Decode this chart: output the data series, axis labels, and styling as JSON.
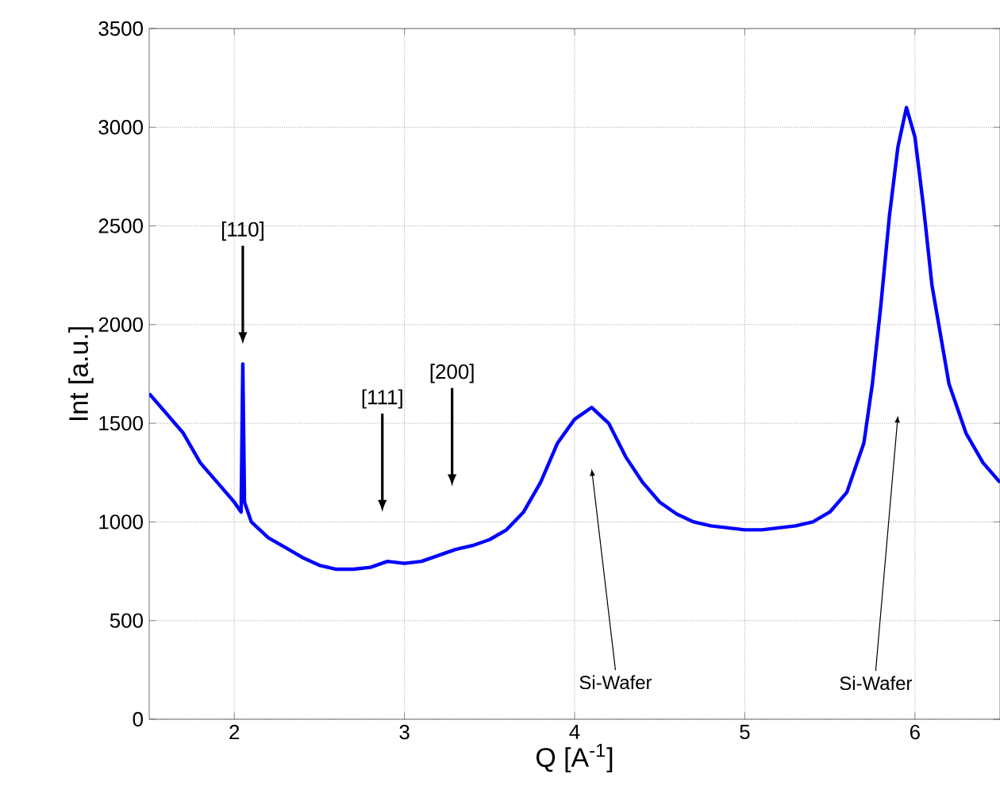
{
  "chart_data": {
    "type": "line",
    "xlabel": "Q [A$^{-1}$]",
    "ylabel": "Int [a.u.]",
    "xlim": [
      1.5,
      6.5
    ],
    "xticks": [
      2,
      3,
      4,
      5,
      6
    ],
    "ylim": [
      0,
      3500
    ],
    "yticks": [
      0,
      500,
      1000,
      1500,
      2000,
      2500,
      3000,
      3500
    ],
    "grid": true,
    "marker": "none",
    "line_style": "solid",
    "series": [
      {
        "color": "#0000ff",
        "x": [
          1.5,
          1.6,
          1.7,
          1.8,
          1.9,
          2.0,
          2.04,
          2.05,
          2.06,
          2.1,
          2.2,
          2.3,
          2.4,
          2.5,
          2.6,
          2.7,
          2.8,
          2.9,
          3.0,
          3.1,
          3.2,
          3.3,
          3.4,
          3.5,
          3.6,
          3.7,
          3.8,
          3.9,
          4.0,
          4.1,
          4.2,
          4.3,
          4.4,
          4.5,
          4.6,
          4.7,
          4.8,
          4.9,
          5.0,
          5.1,
          5.2,
          5.3,
          5.4,
          5.5,
          5.6,
          5.7,
          5.75,
          5.8,
          5.85,
          5.9,
          5.95,
          6.0,
          6.05,
          6.1,
          6.2,
          6.3,
          6.4,
          6.5
        ],
        "values": [
          1650,
          1550,
          1450,
          1300,
          1200,
          1100,
          1050,
          1800,
          1100,
          1000,
          920,
          870,
          820,
          780,
          760,
          760,
          770,
          800,
          790,
          800,
          830,
          860,
          880,
          910,
          960,
          1050,
          1200,
          1400,
          1520,
          1580,
          1500,
          1330,
          1200,
          1100,
          1040,
          1000,
          980,
          970,
          960,
          960,
          970,
          980,
          1000,
          1050,
          1150,
          1400,
          1700,
          2100,
          2550,
          2900,
          3100,
          2950,
          2600,
          2200,
          1700,
          1450,
          1300,
          1200
        ]
      }
    ],
    "annotations": [
      "[110]",
      "[111]",
      "[200]",
      "Si-Wafer",
      "Si-Wafer"
    ]
  }
}
